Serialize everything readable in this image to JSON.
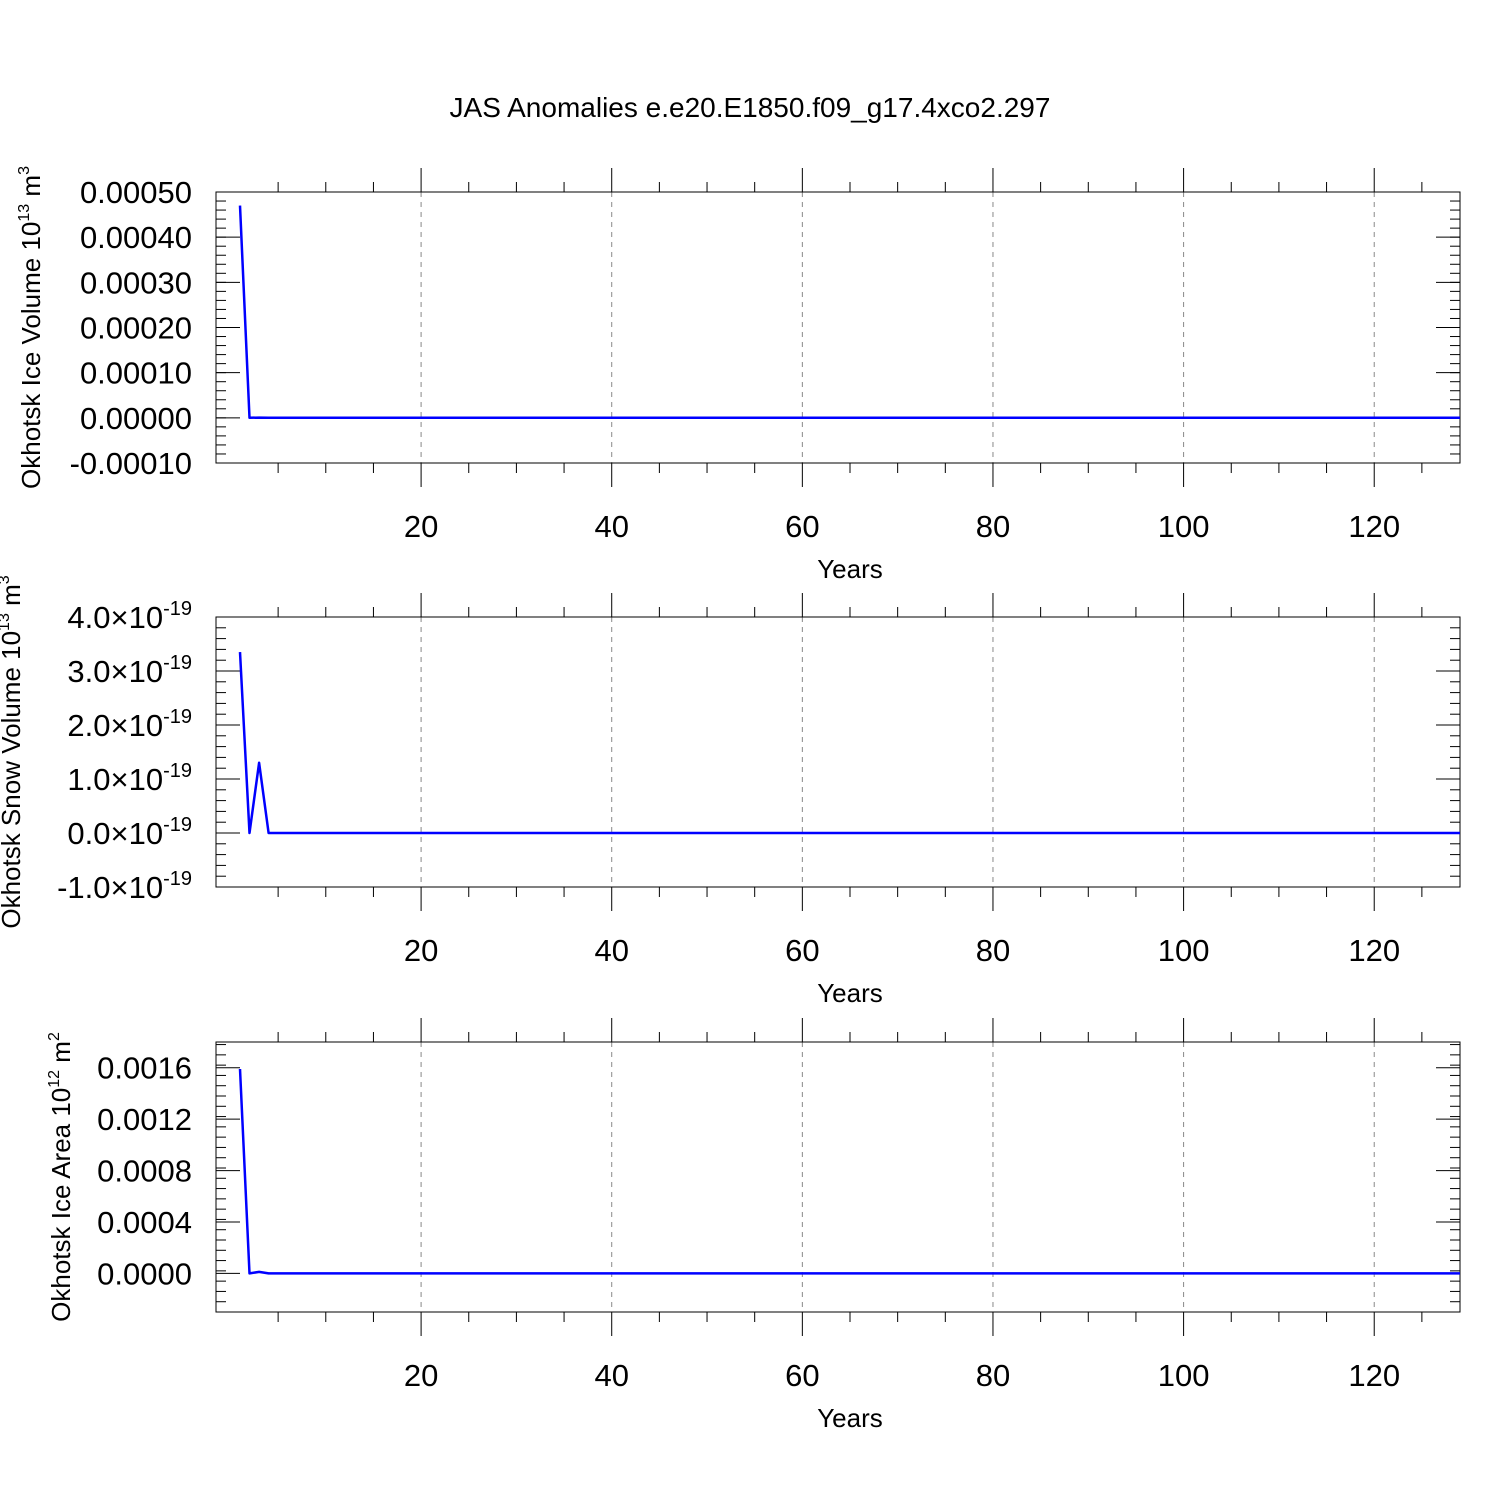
{
  "title": "JAS Anomalies e.e20.E1850.f09_g17.4xco2.297",
  "series_color": "#0000ff",
  "chart_data": [
    {
      "type": "line",
      "title": "JAS Anomalies e.e20.E1850.f09_g17.4xco2.297",
      "xlabel": "Years",
      "ylabel_text": "Okhotsk Ice Volume 10",
      "ylabel_exp": "13",
      "ylabel_unit": " m",
      "ylabel_unit_exp": "3",
      "xlim": [
        1,
        129
      ],
      "ylim": [
        -0.0001,
        0.0005
      ],
      "x_ticks": [
        20,
        40,
        60,
        80,
        100,
        120
      ],
      "x_tick_labels": [
        "20",
        "40",
        "60",
        "80",
        "100",
        "120"
      ],
      "y_ticks": [
        0.0005,
        0.0004,
        0.0003,
        0.0002,
        0.0001,
        0,
        -0.0001
      ],
      "y_tick_labels": [
        "0.00050",
        "0.00040",
        "0.00030",
        "0.00020",
        "0.00010",
        "0.00000",
        "-0.00010"
      ],
      "grid": "vertical dashed at major x ticks",
      "series": [
        {
          "x": [
            1,
            2,
            3,
            4,
            129
          ],
          "y": [
            0.00047,
            0.0,
            5e-07,
            0.0,
            0.0
          ]
        }
      ]
    },
    {
      "type": "line",
      "xlabel": "Years",
      "ylabel_text": "Okhotsk Snow Volume 10",
      "ylabel_exp": "13",
      "ylabel_unit": " m",
      "ylabel_unit_exp": "3",
      "xlim": [
        1,
        129
      ],
      "ylim": [
        -1e-19,
        4e-19
      ],
      "x_ticks": [
        20,
        40,
        60,
        80,
        100,
        120
      ],
      "x_tick_labels": [
        "20",
        "40",
        "60",
        "80",
        "100",
        "120"
      ],
      "y_ticks": [
        4e-19,
        3e-19,
        2e-19,
        1e-19,
        0,
        -1e-19
      ],
      "y_tick_mantissas": [
        "4.0",
        "3.0",
        "2.0",
        "1.0",
        "0.0",
        "-1.0"
      ],
      "y_tick_times": "×10",
      "y_tick_exponent": "-19",
      "grid": "vertical dashed at major x ticks",
      "series": [
        {
          "x": [
            1,
            2,
            3,
            4,
            129
          ],
          "y": [
            3.35e-19,
            0.0,
            1.3e-19,
            0.0,
            0.0
          ]
        }
      ]
    },
    {
      "type": "line",
      "xlabel": "Years",
      "ylabel_text": "Okhotsk Ice Area 10",
      "ylabel_exp": "12",
      "ylabel_unit": " m",
      "ylabel_unit_exp": "2",
      "xlim": [
        1,
        129
      ],
      "ylim": [
        -0.0003,
        0.0018
      ],
      "x_ticks": [
        20,
        40,
        60,
        80,
        100,
        120
      ],
      "x_tick_labels": [
        "20",
        "40",
        "60",
        "80",
        "100",
        "120"
      ],
      "y_ticks": [
        0.0016,
        0.0012,
        0.0008,
        0.0004,
        0
      ],
      "y_tick_labels": [
        "0.0016",
        "0.0012",
        "0.0008",
        "0.0004",
        "0.0000"
      ],
      "grid": "vertical dashed at major x ticks",
      "series": [
        {
          "x": [
            1,
            2,
            3,
            4,
            129
          ],
          "y": [
            0.00159,
            0.0,
            1.2e-05,
            0.0,
            0.0
          ]
        }
      ]
    }
  ]
}
